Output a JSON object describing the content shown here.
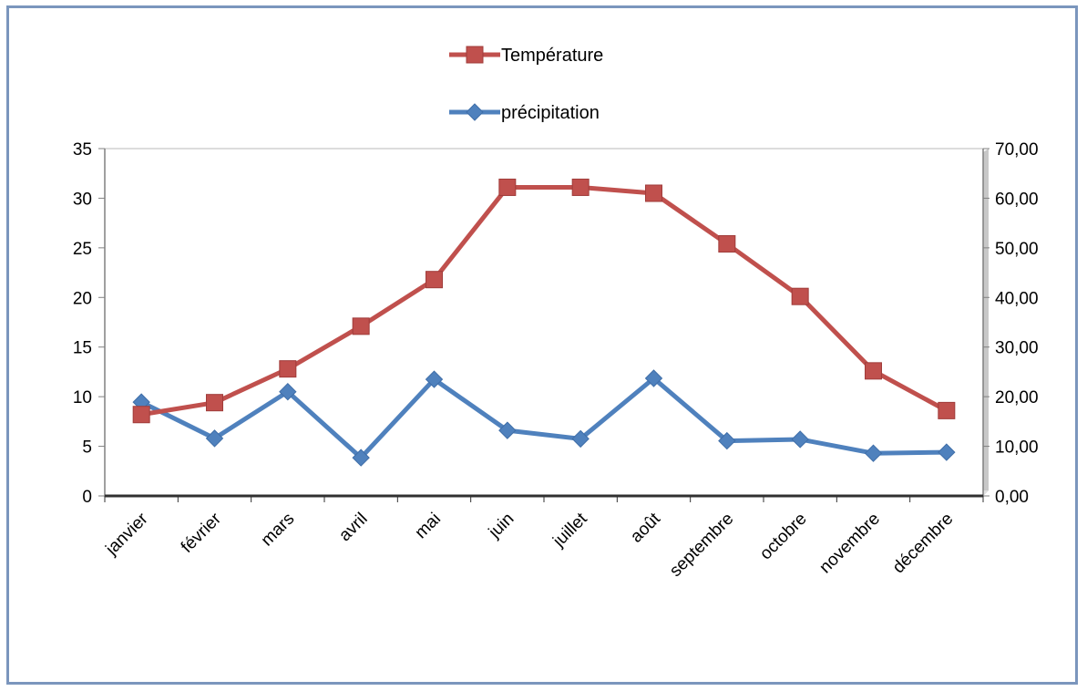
{
  "chart_data": {
    "type": "line",
    "title": "",
    "xlabel": "",
    "ylabel": "",
    "y2label": "",
    "categories": [
      "janvier",
      "février",
      "mars",
      "avril",
      "mai",
      "juin",
      "juillet",
      "août",
      "septembre",
      "octobre",
      "novembre",
      "décembre"
    ],
    "series": [
      {
        "name": "Température",
        "axis": "left",
        "color": "#c0504d",
        "marker": "square",
        "values": [
          8.2,
          9.4,
          12.8,
          17.1,
          21.8,
          31.1,
          31.1,
          30.5,
          25.4,
          20.1,
          12.6,
          8.6
        ]
      },
      {
        "name": "précipitation",
        "axis": "right",
        "color": "#4f81bd",
        "marker": "diamond",
        "values": [
          18.9,
          11.6,
          21.0,
          7.7,
          23.5,
          13.2,
          11.5,
          23.7,
          11.1,
          11.4,
          8.6,
          8.8
        ]
      }
    ],
    "y_left": {
      "ylim": [
        0,
        35
      ],
      "ticks": [
        0,
        5,
        10,
        15,
        20,
        25,
        30,
        35
      ],
      "tick_labels": [
        "0",
        "5",
        "10",
        "15",
        "20",
        "25",
        "30",
        "35"
      ]
    },
    "y_right": {
      "ylim": [
        0,
        70
      ],
      "ticks": [
        0,
        10,
        20,
        30,
        40,
        50,
        60,
        70
      ],
      "tick_labels": [
        "0,00",
        "10,00",
        "20,00",
        "30,00",
        "40,00",
        "50,00",
        "60,00",
        "70,00"
      ]
    },
    "grid": false,
    "legend_position": "top-center"
  }
}
